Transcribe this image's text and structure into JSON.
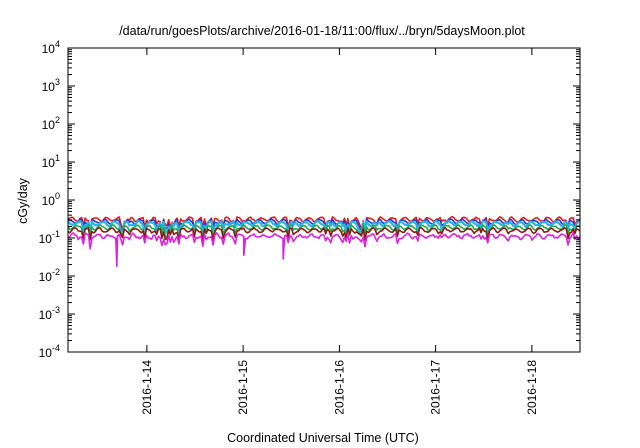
{
  "chart_data": {
    "type": "line",
    "title": "/data/run/goesPlots/archive/2016-01-18/11:00/flux/../bryn/5daysMoon.plot",
    "xlabel": "Coordinated Universal Time (UTC)",
    "ylabel": "cGy/day",
    "yscale": "log",
    "ylim": [
      0.0001,
      10000
    ],
    "y_ticks": [
      {
        "base": "10",
        "exp": "-4"
      },
      {
        "base": "10",
        "exp": "-3"
      },
      {
        "base": "10",
        "exp": "-2"
      },
      {
        "base": "10",
        "exp": "-1"
      },
      {
        "base": "10",
        "exp": "0"
      },
      {
        "base": "10",
        "exp": "1"
      },
      {
        "base": "10",
        "exp": "2"
      },
      {
        "base": "10",
        "exp": "3"
      },
      {
        "base": "10",
        "exp": "4"
      }
    ],
    "xlim": [
      "2016-01-13T04:20",
      "2016-01-18T12:00"
    ],
    "x_ticks": [
      "2016-1-14",
      "2016-1-15",
      "2016-1-16",
      "2016-1-17",
      "2016-1-18"
    ],
    "grid": false,
    "legend": "none",
    "series": [
      {
        "color": "#e0201c",
        "base_value": 0.31
      },
      {
        "color": "#2438d8",
        "base_value": 0.27
      },
      {
        "color": "#27b4e8",
        "base_value": 0.24
      },
      {
        "color": "#24a84a",
        "base_value": 0.19
      },
      {
        "color": "#8b1a1a",
        "base_value": 0.16
      },
      {
        "color": "#e020e0",
        "base_value": 0.12
      }
    ],
    "annotations": [
      {
        "series_color": "#e020e0",
        "x": "2016-01-13T16:30",
        "y": 0.018
      },
      {
        "series_color": "#e020e0",
        "x": "2016-01-15T00:10",
        "y": 0.035
      },
      {
        "series_color": "#e020e0",
        "x": "2016-01-15T10:00",
        "y": 0.028
      }
    ]
  }
}
